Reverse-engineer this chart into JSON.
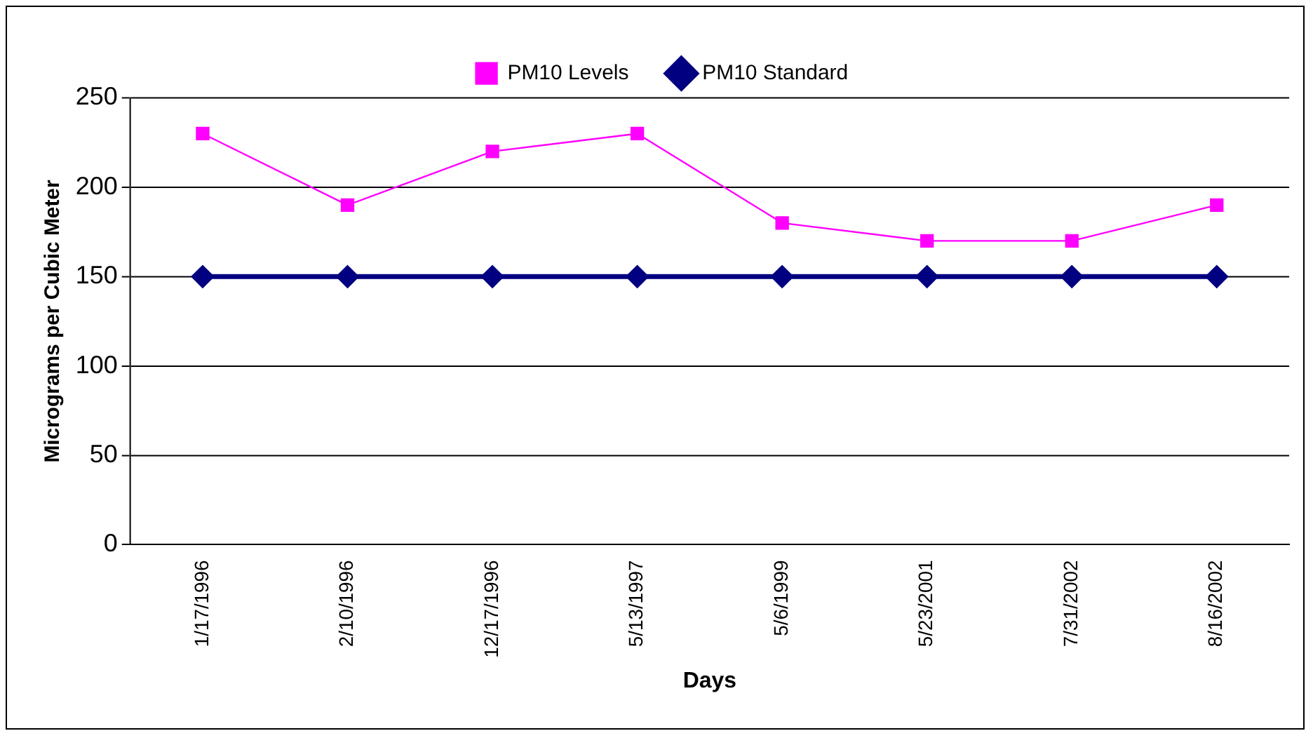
{
  "chart_data": {
    "type": "line",
    "xlabel": "Days",
    "ylabel": "Micrograms per Cubic Meter",
    "categories": [
      "1/17/1996",
      "2/10/1996",
      "12/17/1996",
      "5/13/1997",
      "5/6/1999",
      "5/23/2001",
      "7/31/2002",
      "8/16/2002"
    ],
    "series": [
      {
        "name": "PM10 Levels",
        "color": "#ff00ff",
        "marker": "square",
        "values": [
          230,
          190,
          220,
          230,
          180,
          170,
          170,
          190
        ]
      },
      {
        "name": "PM10 Standard",
        "color": "#000080",
        "marker": "diamond",
        "values": [
          150,
          150,
          150,
          150,
          150,
          150,
          150,
          150
        ]
      }
    ],
    "ylim": [
      0,
      250
    ],
    "yticks": [
      0,
      50,
      100,
      150,
      200,
      250
    ],
    "grid": "y",
    "legend": "top"
  }
}
